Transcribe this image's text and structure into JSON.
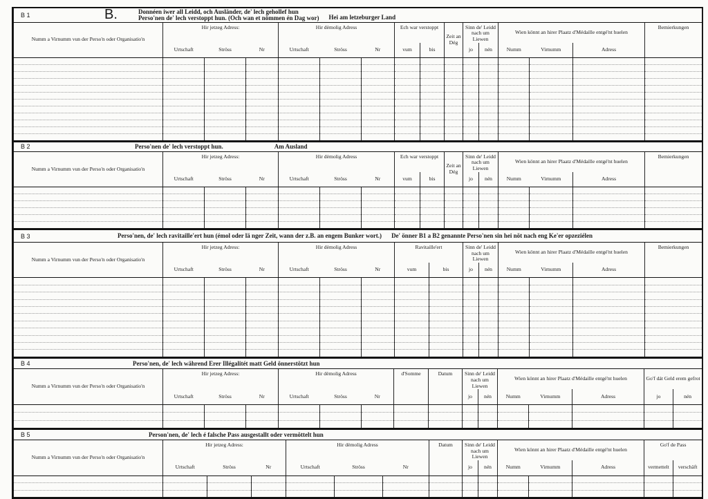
{
  "form_marker": "B.",
  "common": {
    "name": "Numm a Virnumm vun der Perso'n oder Organisatio'n",
    "current_address": "Hir jetzeg Adress:",
    "former_address": "Hir dèmolig Adress",
    "locality": "Urtschaft",
    "street": "Ströss",
    "number": "Nr",
    "from": "vum",
    "to": "bis",
    "alive": "Sinn de' Leidd nach um Liewen",
    "yes": "jo",
    "no": "nén",
    "medal": "Wien könnt an hirer Plaatz d'Médaille entgé'nt huelen",
    "surname": "Numm",
    "firstname": "Virnumm",
    "address": "Adress",
    "remarks": "Bemierkungen"
  },
  "sections": [
    {
      "label": "B 1",
      "title": [
        "Donnéen iwer all Leidd, och Ausländer, de' lech gehollef hun",
        "Perso'nen de' lech verstoppt hun. (Och wan et nömmen én Dag wor)"
      ],
      "title_extra": "Hei am letzeburger Land",
      "hidden": "Ech war verstoppt",
      "days": "Zeit an Dég"
    },
    {
      "label": "B 2",
      "title": [
        "Perso'nen de' lech verstoppt hun."
      ],
      "title_extra": "Am Ausland",
      "hidden": "Ech war verstoppt",
      "days": "Zeit an Dég"
    },
    {
      "label": "B 3",
      "title": [
        "Perso'nen, de' lech ravitaille'ert hun (émol oder lä nger Zeit, wann der z.B. an engem Bunker wort.)"
      ],
      "title_extra": "De' önner B1 a B2 genannte Perso'nen sin hei nöt nach eng Ke'er opzeziélen",
      "supplied": "Ravitaille'ert"
    },
    {
      "label": "B 4",
      "title": [
        "Perso'nen, de' lech während Erer Illégalitét matt Geld önnerstötzt hun"
      ],
      "sum": "d'Somme",
      "date": "Datum",
      "money_back": "Go'f dát Geld erem gefrot"
    },
    {
      "label": "B 5",
      "title": [
        "Person'nen, de' lech é falsche Pass ausgestallt oder vermöttelt hun"
      ],
      "date": "Datum",
      "passport": "Go'f de Pass",
      "mediated": "vermettelt",
      "procured": "verschäft"
    }
  ]
}
